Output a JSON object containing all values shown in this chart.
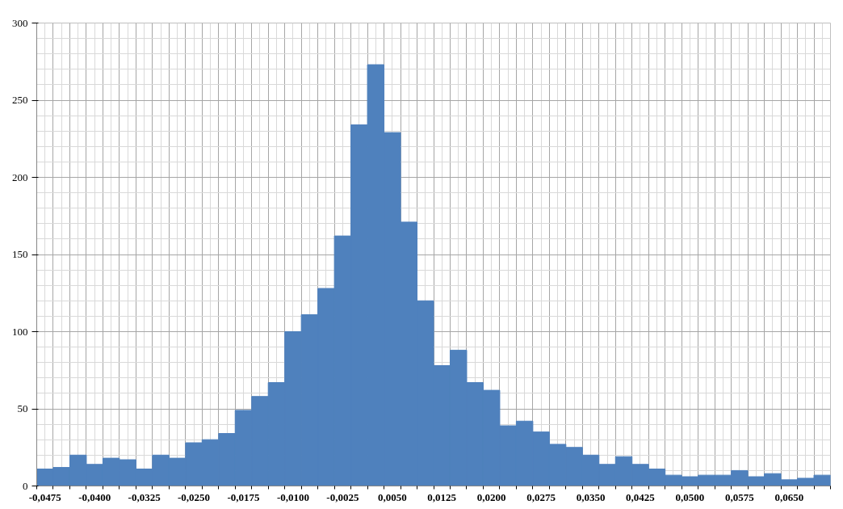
{
  "chart_data": {
    "type": "bar",
    "color": "#4f81bd",
    "categories": [
      "-0,0475",
      null,
      null,
      "-0,0400",
      null,
      null,
      "-0,0325",
      null,
      null,
      "-0,0250",
      null,
      null,
      "-0,0175",
      null,
      null,
      "-0,0100",
      null,
      null,
      "-0,0025",
      null,
      null,
      "0,0050",
      null,
      null,
      "0,0125",
      null,
      null,
      "0,0200",
      null,
      null,
      "0,0275",
      null,
      null,
      "0,0350",
      null,
      null,
      "0,0425",
      null,
      null,
      "0,0500",
      null,
      null,
      "0,0575",
      null,
      null,
      "0,0650",
      null,
      null
    ],
    "values": [
      11,
      12,
      20,
      14,
      18,
      17,
      11,
      20,
      18,
      28,
      30,
      34,
      49,
      58,
      67,
      100,
      111,
      128,
      162,
      234,
      273,
      229,
      171,
      120,
      78,
      88,
      67,
      62,
      39,
      42,
      35,
      27,
      25,
      20,
      14,
      19,
      14,
      11,
      7,
      6,
      7,
      7,
      10,
      6,
      8,
      4,
      5,
      7
    ],
    "ylim": [
      0,
      300
    ],
    "yticks": [
      0,
      50,
      100,
      150,
      200,
      250,
      300
    ],
    "grid": true
  }
}
